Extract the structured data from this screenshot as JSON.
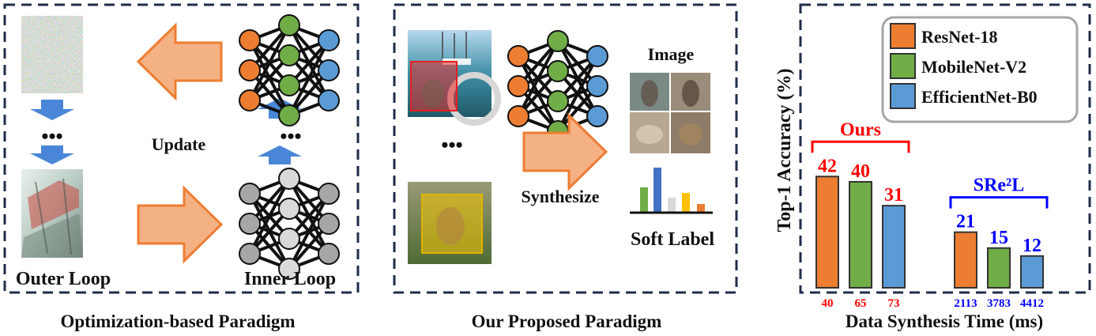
{
  "panel_left": {
    "caption": "Optimization-based Paradigm",
    "update_label": "Update",
    "outer_loop_label": "Outer Loop",
    "inner_loop_label": "Inner Loop",
    "dots": "•••"
  },
  "panel_middle": {
    "caption": "Our Proposed Paradigm",
    "image_label": "Image",
    "synthesize_label": "Synthesize",
    "soft_label_label": "Soft Label",
    "dots": "•••"
  },
  "chart_data": {
    "type": "bar",
    "ylabel": "Top-1 Accuracy (%)",
    "xlabel": "Data Synthesis Time (ms)",
    "legend_position": "top-right",
    "series_names": [
      "ResNet-18",
      "MobileNet-V2",
      "EfficientNet-B0"
    ],
    "colors": {
      "ResNet-18": "#ED7D31",
      "MobileNet-V2": "#70AD47",
      "EfficientNet-B0": "#5B9BD5"
    },
    "ylim": [
      0,
      50
    ],
    "groups": [
      {
        "name": "Ours",
        "label_color": "#FF0000",
        "bars": [
          {
            "series": "ResNet-18",
            "accuracy": 42,
            "time_ms": 40
          },
          {
            "series": "MobileNet-V2",
            "accuracy": 40,
            "time_ms": 65
          },
          {
            "series": "EfficientNet-B0",
            "accuracy": 31,
            "time_ms": 73
          }
        ]
      },
      {
        "name": "SRe²L",
        "label_color": "#0000FF",
        "bars": [
          {
            "series": "ResNet-18",
            "accuracy": 21,
            "time_ms": 2113
          },
          {
            "series": "MobileNet-V2",
            "accuracy": 15,
            "time_ms": 3783
          },
          {
            "series": "EfficientNet-B0",
            "accuracy": 12,
            "time_ms": 4412
          }
        ]
      }
    ]
  }
}
